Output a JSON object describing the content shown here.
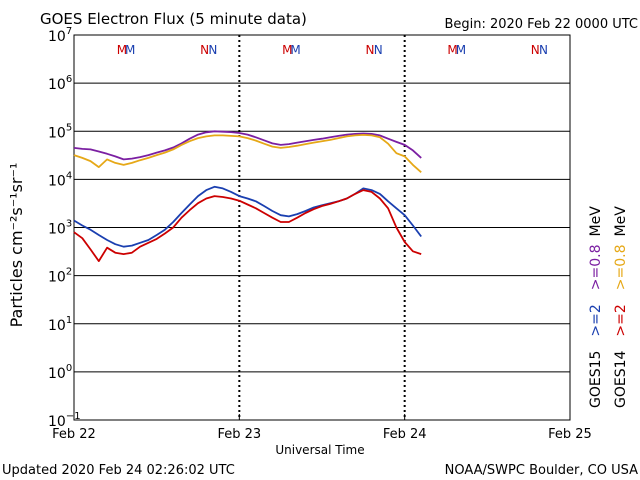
{
  "chart_data": {
    "type": "line",
    "title": "GOES Electron Flux (5 minute data)",
    "begin_label": "Begin: 2020 Feb 22 0000 UTC",
    "xlabel": "Universal Time",
    "ylabel": "Particles cm⁻²s⁻¹sr⁻¹",
    "updated_label": "Updated 2020 Feb 24 02:26:02 UTC",
    "credit_label": "NOAA/SWPC Boulder, CO USA",
    "x_unit": "days since 2020 Feb 22 0000 UTC",
    "xlim": [
      0,
      3
    ],
    "ylim_log10": [
      -1,
      7
    ],
    "x_ticks": [
      {
        "x": 0,
        "label": "Feb 22"
      },
      {
        "x": 1,
        "label": "Feb 23"
      },
      {
        "x": 2,
        "label": "Feb 24"
      },
      {
        "x": 3,
        "label": "Feb 25"
      }
    ],
    "y_ticks": [
      {
        "exp": 7,
        "base": "10",
        "sup": "7"
      },
      {
        "exp": 6,
        "base": "10",
        "sup": "6"
      },
      {
        "exp": 5,
        "base": "10",
        "sup": "5"
      },
      {
        "exp": 4,
        "base": "10",
        "sup": "4"
      },
      {
        "exp": 3,
        "base": "10",
        "sup": "3"
      },
      {
        "exp": 2,
        "base": "10",
        "sup": "2"
      },
      {
        "exp": 1,
        "base": "10",
        "sup": "1"
      },
      {
        "exp": 0,
        "base": "10",
        "sup": "0"
      },
      {
        "exp": -1,
        "base": "10",
        "sup": "−1"
      }
    ],
    "threshold": {
      "value": 1000,
      "style": "dashed"
    },
    "day_markers": [
      {
        "day": 0,
        "marks": [
          {
            "x": 0.29,
            "label": "M",
            "color": "#cc0000"
          },
          {
            "x": 0.34,
            "label": "M",
            "color": "#1a3fb0"
          },
          {
            "x": 0.79,
            "label": "N",
            "color": "#cc0000"
          },
          {
            "x": 0.84,
            "label": "N",
            "color": "#1a3fb0"
          }
        ]
      },
      {
        "day": 1,
        "marks": [
          {
            "x": 1.29,
            "label": "M",
            "color": "#cc0000"
          },
          {
            "x": 1.34,
            "label": "M",
            "color": "#1a3fb0"
          },
          {
            "x": 1.79,
            "label": "N",
            "color": "#cc0000"
          },
          {
            "x": 1.84,
            "label": "N",
            "color": "#1a3fb0"
          }
        ]
      },
      {
        "day": 2,
        "marks": [
          {
            "x": 2.29,
            "label": "M",
            "color": "#cc0000"
          },
          {
            "x": 2.34,
            "label": "M",
            "color": "#1a3fb0"
          },
          {
            "x": 2.79,
            "label": "N",
            "color": "#cc0000"
          },
          {
            "x": 2.84,
            "label": "N",
            "color": "#1a3fb0"
          }
        ]
      }
    ],
    "legend": {
      "placement": "right",
      "groups": [
        {
          "heading": "GOES15",
          "items": [
            {
              "label": ">=2",
              "color": "#1a3fb0"
            },
            {
              "label": ">=0.8",
              "color": "#7b1fa2"
            }
          ],
          "unit": "MeV"
        },
        {
          "heading": "GOES14",
          "items": [
            {
              "label": ">=2",
              "color": "#cc0000"
            },
            {
              "label": ">=0.8",
              "color": "#e6a817"
            }
          ],
          "unit": "MeV"
        }
      ]
    },
    "series": [
      {
        "name": "GOES15 >=0.8 MeV",
        "color": "#7b1fa2",
        "x": [
          0,
          0.05,
          0.1,
          0.15,
          0.2,
          0.25,
          0.3,
          0.35,
          0.4,
          0.45,
          0.5,
          0.55,
          0.6,
          0.65,
          0.7,
          0.75,
          0.8,
          0.85,
          0.9,
          0.95,
          1.0,
          1.05,
          1.1,
          1.15,
          1.2,
          1.25,
          1.3,
          1.35,
          1.4,
          1.45,
          1.5,
          1.55,
          1.6,
          1.65,
          1.7,
          1.75,
          1.8,
          1.85,
          1.9,
          1.95,
          2.0,
          2.05,
          2.1
        ],
        "values": [
          45000,
          43000,
          42000,
          38000,
          34000,
          30000,
          26000,
          27000,
          29000,
          32000,
          36000,
          40000,
          46000,
          56000,
          70000,
          85000,
          95000,
          100000,
          98000,
          96000,
          92000,
          85000,
          75000,
          65000,
          56000,
          52000,
          54000,
          58000,
          62000,
          66000,
          70000,
          75000,
          80000,
          85000,
          88000,
          90000,
          88000,
          82000,
          70000,
          60000,
          52000,
          40000,
          28000
        ]
      },
      {
        "name": "GOES14 >=0.8 MeV",
        "color": "#e6a817",
        "x": [
          0,
          0.05,
          0.1,
          0.15,
          0.2,
          0.25,
          0.3,
          0.35,
          0.4,
          0.45,
          0.5,
          0.55,
          0.6,
          0.65,
          0.7,
          0.75,
          0.8,
          0.85,
          0.9,
          0.95,
          1.0,
          1.05,
          1.1,
          1.15,
          1.2,
          1.25,
          1.3,
          1.35,
          1.4,
          1.45,
          1.5,
          1.55,
          1.6,
          1.65,
          1.7,
          1.75,
          1.8,
          1.85,
          1.9,
          1.95,
          2.0,
          2.05,
          2.1
        ],
        "values": [
          32000,
          28000,
          24000,
          18000,
          26000,
          22000,
          20000,
          22000,
          25000,
          28000,
          32000,
          36000,
          42000,
          52000,
          62000,
          72000,
          78000,
          82000,
          82000,
          80000,
          78000,
          72000,
          64000,
          55000,
          48000,
          45000,
          47000,
          50000,
          54000,
          58000,
          62000,
          66000,
          72000,
          78000,
          82000,
          84000,
          82000,
          75000,
          55000,
          35000,
          30000,
          20000,
          14000
        ]
      },
      {
        "name": "GOES15 >=2 MeV",
        "color": "#1a3fb0",
        "x": [
          0,
          0.05,
          0.1,
          0.15,
          0.2,
          0.25,
          0.3,
          0.35,
          0.4,
          0.45,
          0.5,
          0.55,
          0.6,
          0.65,
          0.7,
          0.75,
          0.8,
          0.85,
          0.9,
          0.95,
          1.0,
          1.05,
          1.1,
          1.15,
          1.2,
          1.25,
          1.3,
          1.35,
          1.4,
          1.45,
          1.5,
          1.55,
          1.6,
          1.65,
          1.7,
          1.75,
          1.8,
          1.85,
          1.9,
          1.95,
          2.0,
          2.05,
          2.1
        ],
        "values": [
          1400,
          1100,
          900,
          700,
          550,
          450,
          400,
          420,
          480,
          550,
          700,
          900,
          1300,
          2000,
          3000,
          4500,
          6000,
          7000,
          6500,
          5500,
          4500,
          4000,
          3500,
          2800,
          2200,
          1800,
          1700,
          1900,
          2200,
          2600,
          2900,
          3200,
          3500,
          4000,
          5000,
          6500,
          6000,
          5000,
          3500,
          2500,
          1800,
          1100,
          650
        ]
      },
      {
        "name": "GOES14 >=2 MeV",
        "color": "#cc0000",
        "x": [
          0,
          0.05,
          0.1,
          0.15,
          0.2,
          0.25,
          0.3,
          0.35,
          0.4,
          0.45,
          0.5,
          0.55,
          0.6,
          0.65,
          0.7,
          0.75,
          0.8,
          0.85,
          0.9,
          0.95,
          1.0,
          1.05,
          1.1,
          1.15,
          1.2,
          1.25,
          1.3,
          1.35,
          1.4,
          1.45,
          1.5,
          1.55,
          1.6,
          1.65,
          1.7,
          1.75,
          1.8,
          1.85,
          1.9,
          1.95,
          2.0,
          2.05,
          2.1
        ],
        "values": [
          800,
          600,
          350,
          200,
          380,
          300,
          280,
          300,
          400,
          480,
          580,
          750,
          1000,
          1600,
          2300,
          3200,
          4000,
          4500,
          4300,
          4000,
          3600,
          3000,
          2500,
          2000,
          1600,
          1300,
          1300,
          1600,
          2000,
          2400,
          2800,
          3100,
          3500,
          4000,
          5000,
          6000,
          5500,
          4000,
          2500,
          1000,
          500,
          320,
          280
        ]
      }
    ]
  }
}
